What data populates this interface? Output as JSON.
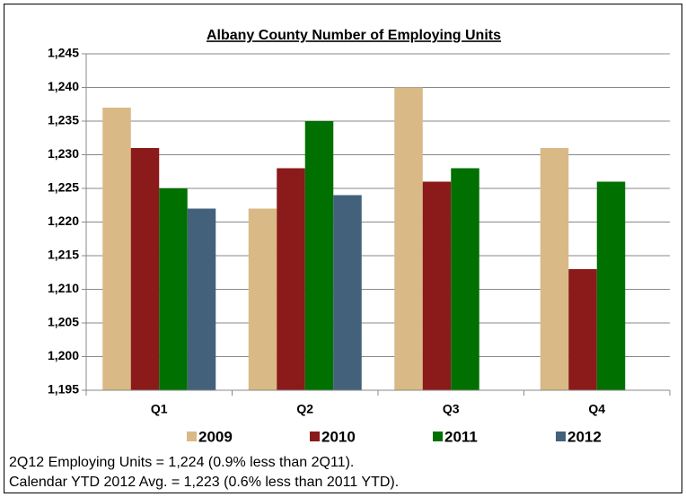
{
  "chart_data": {
    "type": "bar",
    "title": "Albany County Number of Employing Units",
    "categories": [
      "Q1",
      "Q2",
      "Q3",
      "Q4"
    ],
    "series": [
      {
        "name": "2009",
        "color": "#d9b985",
        "values": [
          1237,
          1222,
          1240,
          1231
        ]
      },
      {
        "name": "2010",
        "color": "#8b1a1a",
        "values": [
          1231,
          1228,
          1226,
          1213
        ]
      },
      {
        "name": "2011",
        "color": "#007000",
        "values": [
          1225,
          1235,
          1228,
          1226
        ]
      },
      {
        "name": "2012",
        "color": "#44617b",
        "values": [
          1222,
          1224,
          null,
          null
        ]
      }
    ],
    "ylim": [
      1195,
      1245
    ],
    "yticks": [
      {
        "value": 1195,
        "label": "1,195"
      },
      {
        "value": 1200,
        "label": "1,200"
      },
      {
        "value": 1205,
        "label": "1,205"
      },
      {
        "value": 1210,
        "label": "1,210"
      },
      {
        "value": 1215,
        "label": "1,215"
      },
      {
        "value": 1220,
        "label": "1,220"
      },
      {
        "value": 1225,
        "label": "1,225"
      },
      {
        "value": 1230,
        "label": "1,230"
      },
      {
        "value": 1235,
        "label": "1,235"
      },
      {
        "value": 1240,
        "label": "1,240"
      },
      {
        "value": 1245,
        "label": "1,245"
      }
    ],
    "grid": true,
    "legend": "bottom",
    "annotations": [
      "2Q12 Employing Units = 1,224 (0.9% less than 2Q11).",
      "Calendar YTD 2012 Avg. = 1,223 (0.6% less than 2011 YTD)."
    ]
  }
}
